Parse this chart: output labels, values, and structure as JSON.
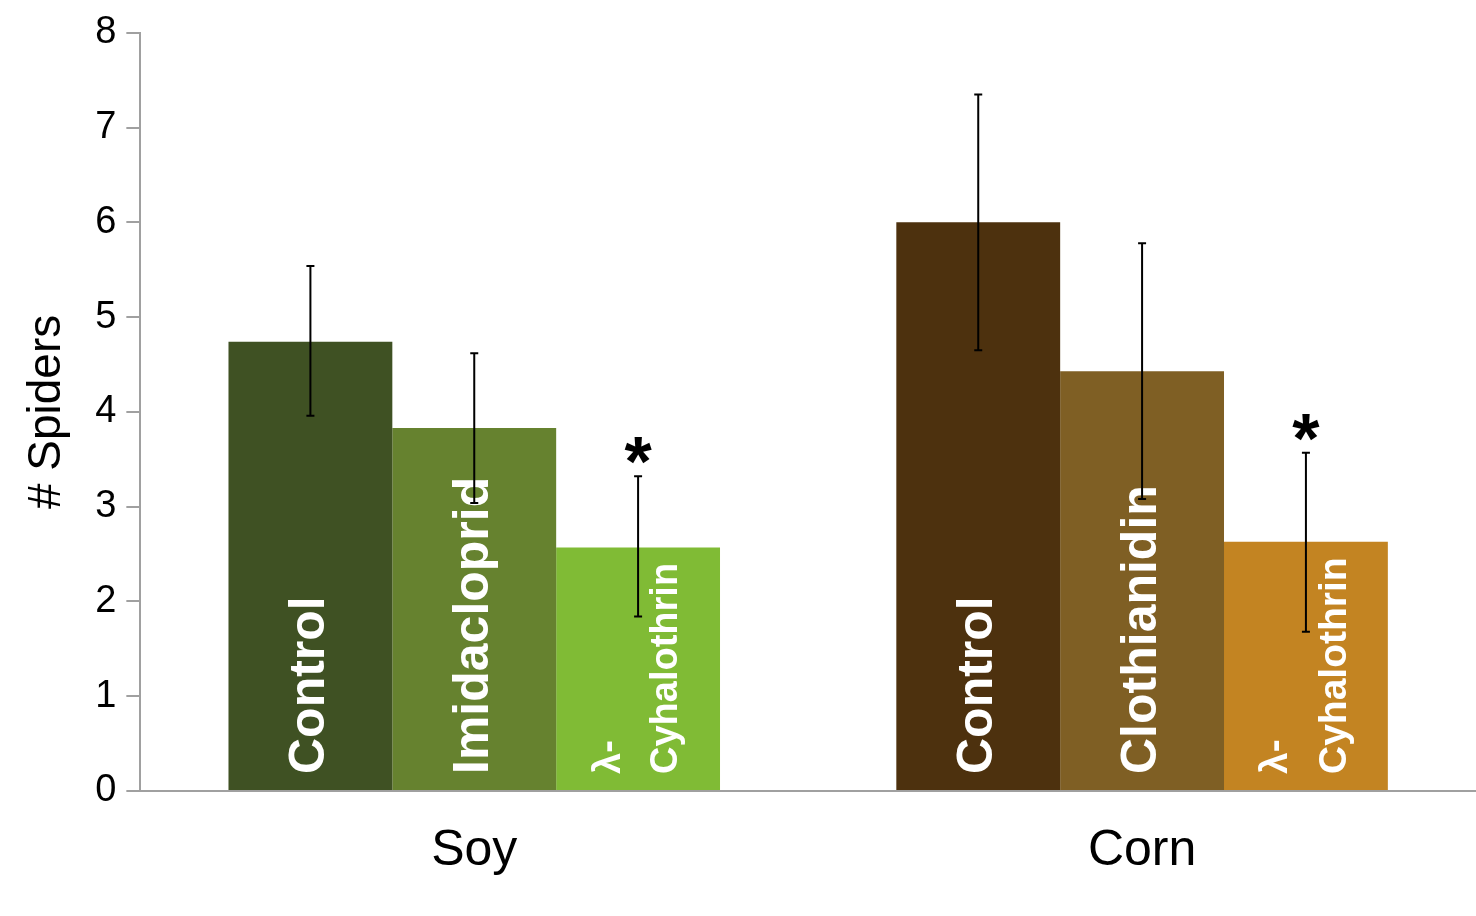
{
  "chart_data": {
    "type": "bar",
    "ylabel": "# Spiders",
    "categories": [
      "Soy",
      "Corn"
    ],
    "series": [
      {
        "colors": [
          "#3f5123",
          "#4d310e"
        ],
        "values": [
          4.74,
          6.0
        ],
        "errors": [
          [
            3.96,
            5.54
          ],
          [
            4.65,
            7.35
          ]
        ],
        "value_labels": [
          "Control",
          "Control"
        ]
      },
      {
        "colors": [
          "#66822f",
          "#7f5f24"
        ],
        "values": [
          3.83,
          4.43
        ],
        "errors": [
          [
            3.04,
            4.62
          ],
          [
            3.08,
            5.78
          ]
        ],
        "value_labels": [
          "Imidacloprid",
          "Clothianidin"
        ]
      },
      {
        "colors": [
          "#80bb35",
          "#c38422"
        ],
        "values": [
          2.57,
          2.63
        ],
        "errors": [
          [
            1.84,
            3.32
          ],
          [
            1.68,
            3.57
          ]
        ],
        "value_labels": [
          "λ- Cyhalothrin",
          "λ- Cyhalothrin"
        ]
      }
    ],
    "annotations": [
      "*",
      "*"
    ],
    "ylim": [
      0,
      8
    ],
    "yticks": [
      0,
      1,
      2,
      3,
      4,
      5,
      6,
      7,
      8
    ],
    "grid": false,
    "legend": false
  }
}
